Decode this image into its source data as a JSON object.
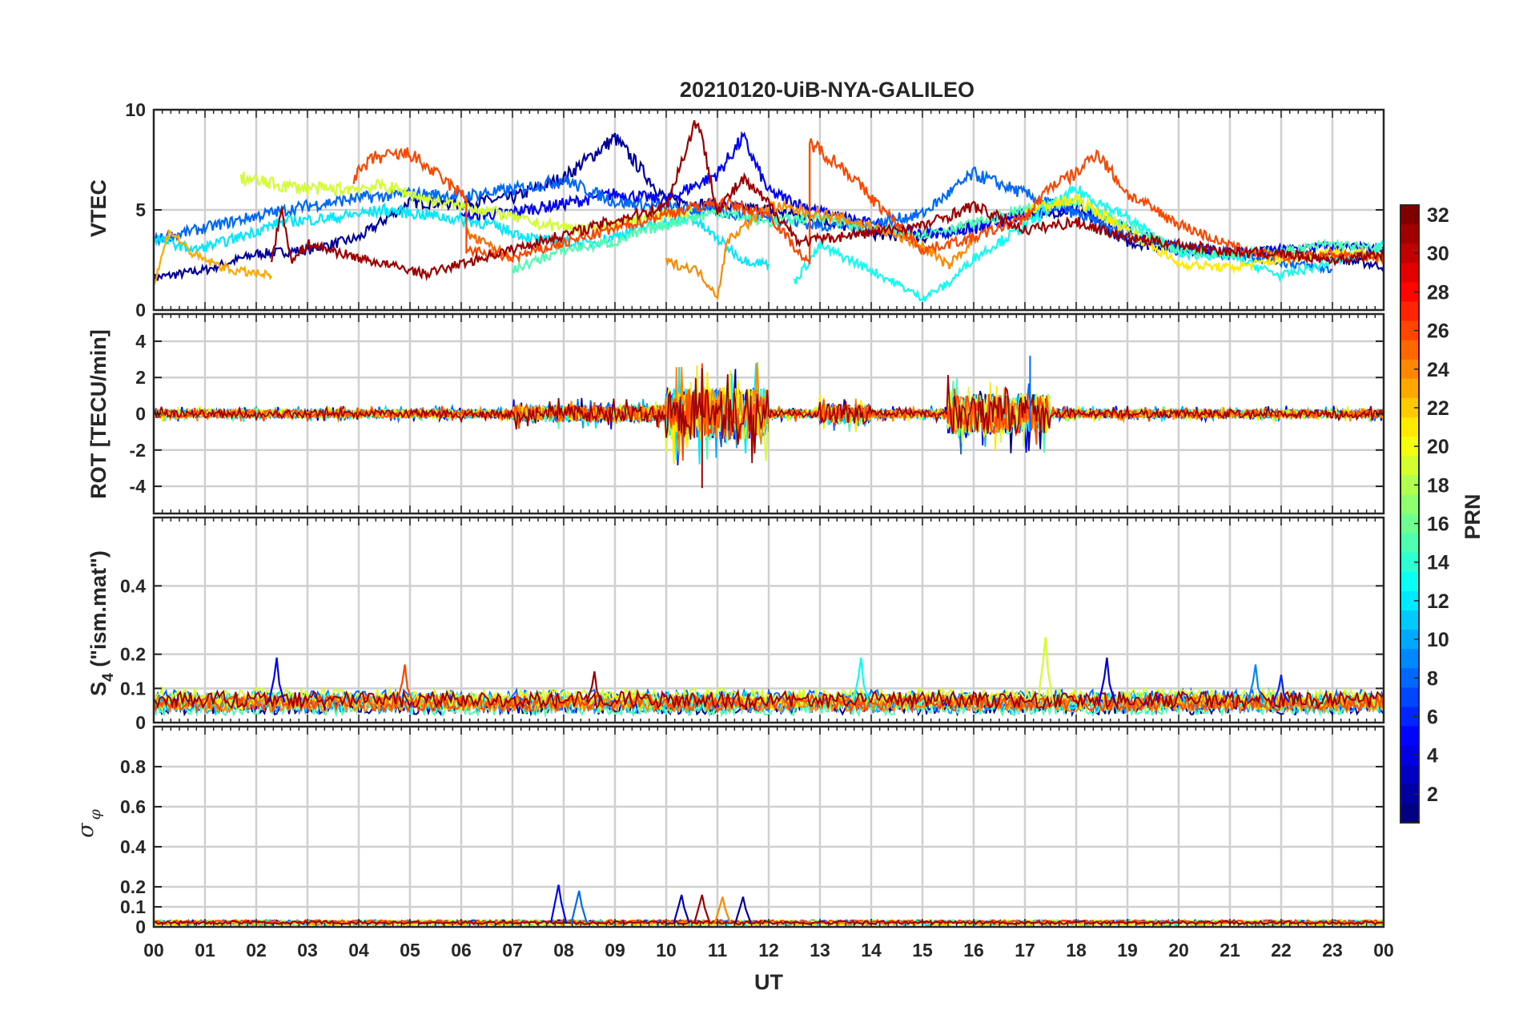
{
  "chart_data": [
    {
      "type": "line",
      "title": "20210120-UiB-NYA-GALILEO",
      "ylabel": "VTEC",
      "ylim": [
        0,
        10
      ],
      "yticks": [
        0,
        5,
        10
      ],
      "xlim": [
        0,
        24
      ],
      "x_unit": "hours UT",
      "grid": true,
      "series": [
        {
          "prn": 2,
          "points": [
            [
              0,
              1.6
            ],
            [
              1,
              2.0
            ],
            [
              2,
              2.8
            ],
            [
              3,
              3.0
            ],
            [
              4,
              3.6
            ],
            [
              5,
              5.4
            ],
            [
              6,
              5.3
            ],
            [
              7,
              5.6
            ],
            [
              8,
              6.6
            ],
            [
              9,
              8.6
            ],
            [
              10,
              5.5
            ],
            [
              11,
              5.2
            ],
            [
              12,
              5.0
            ],
            [
              13,
              4.5
            ],
            [
              14,
              3.8
            ],
            [
              15,
              3.6
            ],
            [
              16,
              4.2
            ],
            [
              17,
              4.8
            ],
            [
              18,
              5.0
            ],
            [
              19,
              3.4
            ],
            [
              20,
              3.0
            ],
            [
              21,
              2.9
            ],
            [
              22,
              3.0
            ],
            [
              23,
              2.6
            ],
            [
              24,
              2.2
            ]
          ]
        },
        {
          "prn": 5,
          "points": [
            [
              6,
              4.6
            ],
            [
              7,
              4.9
            ],
            [
              8,
              5.3
            ],
            [
              9,
              5.8
            ],
            [
              10,
              5.5
            ],
            [
              11,
              6.8
            ],
            [
              11.5,
              8.6
            ],
            [
              12,
              5.9
            ],
            [
              13,
              4.9
            ],
            [
              14,
              4.3
            ],
            [
              15,
              3.8
            ],
            [
              16,
              4.0
            ],
            [
              17,
              4.8
            ],
            [
              18,
              5.2
            ],
            [
              19,
              4.0
            ],
            [
              20,
              3.1
            ],
            [
              21,
              2.8
            ],
            [
              22,
              3.0
            ],
            [
              23,
              3.2
            ],
            [
              24,
              3.0
            ]
          ]
        },
        {
          "prn": 8,
          "points": [
            [
              0,
              3.5
            ],
            [
              1,
              4.1
            ],
            [
              2,
              4.7
            ],
            [
              3,
              5.2
            ],
            [
              4,
              5.6
            ],
            [
              5,
              5.8
            ],
            [
              6,
              5.7
            ],
            [
              7,
              6.0
            ],
            [
              8,
              6.5
            ],
            [
              9,
              5.4
            ],
            [
              10,
              5.1
            ],
            [
              11,
              4.9
            ],
            [
              12,
              4.6
            ],
            [
              13,
              4.2
            ],
            [
              14,
              4.3
            ],
            [
              15,
              4.8
            ],
            [
              16,
              6.8
            ],
            [
              17,
              5.8
            ],
            [
              18,
              4.8
            ],
            [
              19,
              3.7
            ],
            [
              20,
              3.2
            ],
            [
              21,
              2.9
            ],
            [
              22,
              2.4
            ],
            [
              23,
              2.0
            ]
          ]
        },
        {
          "prn": 12,
          "points": [
            [
              0,
              3.6
            ],
            [
              0.8,
              3.0
            ],
            [
              1.5,
              3.5
            ],
            [
              2.5,
              4.4
            ],
            [
              3.5,
              4.6
            ],
            [
              4.5,
              5.0
            ],
            [
              5.5,
              4.7
            ],
            [
              6.5,
              4.3
            ],
            [
              7.5,
              3.5
            ],
            [
              8.5,
              3.3
            ],
            [
              9.5,
              4.1
            ],
            [
              10.5,
              4.6
            ],
            [
              11.5,
              2.5
            ],
            [
              12,
              2.3
            ]
          ]
        },
        {
          "prn": 13,
          "points": [
            [
              12.5,
              1.4
            ],
            [
              13,
              3.2
            ],
            [
              14,
              2.0
            ],
            [
              15,
              0.6
            ],
            [
              15.5,
              1.3
            ],
            [
              16,
              2.6
            ],
            [
              17,
              4.2
            ],
            [
              18,
              6.0
            ],
            [
              19,
              4.6
            ],
            [
              20,
              2.8
            ],
            [
              21,
              2.7
            ],
            [
              22,
              1.7
            ],
            [
              23,
              2.4
            ],
            [
              24,
              3.2
            ]
          ]
        },
        {
          "prn": 15,
          "points": [
            [
              7,
              2.0
            ],
            [
              8,
              3.0
            ],
            [
              9,
              3.4
            ],
            [
              10,
              4.3
            ],
            [
              11,
              4.9
            ],
            [
              12,
              4.4
            ],
            [
              13,
              4.7
            ],
            [
              14,
              4.0
            ],
            [
              15,
              3.8
            ],
            [
              16,
              4.3
            ],
            [
              17,
              5.0
            ],
            [
              18,
              5.4
            ],
            [
              19,
              4.2
            ],
            [
              20,
              3.0
            ],
            [
              21,
              2.8
            ],
            [
              22,
              2.9
            ],
            [
              23,
              3.3
            ],
            [
              24,
              3.0
            ]
          ]
        },
        {
          "prn": 19,
          "points": [
            [
              1.7,
              6.6
            ],
            [
              2.5,
              6.2
            ],
            [
              3.5,
              6.0
            ],
            [
              4.5,
              6.2
            ],
            [
              5.5,
              5.4
            ],
            [
              6.5,
              5.0
            ],
            [
              7.5,
              4.3
            ],
            [
              8.5,
              4.0
            ],
            [
              9.5,
              4.6
            ],
            [
              10.5,
              4.9
            ]
          ]
        },
        {
          "prn": 21,
          "points": [
            [
              17,
              5.0
            ],
            [
              18,
              5.5
            ],
            [
              19,
              4.0
            ],
            [
              20,
              2.3
            ],
            [
              21,
              2.1
            ],
            [
              22,
              2.5
            ],
            [
              23,
              2.9
            ],
            [
              24,
              2.7
            ]
          ]
        },
        {
          "prn": 23,
          "points": [
            [
              0,
              1.2
            ],
            [
              0.3,
              4.0
            ],
            [
              0.8,
              2.7
            ],
            [
              1.5,
              2.0
            ],
            [
              2.3,
              1.7
            ]
          ]
        },
        {
          "prn": 24,
          "points": [
            [
              10,
              2.4
            ],
            [
              10.6,
              2.0
            ],
            [
              11,
              0.7
            ],
            [
              11.2,
              3.5
            ],
            [
              12,
              5.2
            ],
            [
              13,
              4.8
            ],
            [
              14,
              4.2
            ],
            [
              15,
              3.2
            ],
            [
              15.5,
              2.2
            ],
            [
              16,
              3.5
            ]
          ]
        },
        {
          "prn": 25,
          "points": [
            [
              6.1,
              3.8
            ],
            [
              7,
              2.6
            ]
          ]
        },
        {
          "prn": 26,
          "points": [
            [
              3.9,
              6.6
            ],
            [
              4.3,
              7.6
            ],
            [
              5,
              7.8
            ],
            [
              5.8,
              6.2
            ],
            [
              6.1,
              5.6
            ],
            [
              6.1,
              3.0
            ],
            [
              7,
              2.6
            ],
            [
              10,
              4.8
            ],
            [
              11,
              5.4
            ],
            [
              12,
              4.8
            ],
            [
              12.8,
              2.2
            ],
            [
              12.8,
              8.4
            ],
            [
              13.5,
              7.0
            ],
            [
              14,
              5.6
            ],
            [
              15,
              3.0
            ],
            [
              16,
              3.6
            ],
            [
              17,
              4.6
            ],
            [
              17.5,
              6.2
            ],
            [
              18,
              6.8
            ],
            [
              18.4,
              7.9
            ],
            [
              19,
              5.8
            ],
            [
              20,
              4.3
            ],
            [
              21,
              3.2
            ],
            [
              22,
              2.6
            ],
            [
              23,
              2.8
            ],
            [
              24,
              2.6
            ]
          ]
        },
        {
          "prn": 31,
          "points": [
            [
              2.3,
              2.6
            ],
            [
              2.5,
              5.0
            ],
            [
              2.7,
              2.4
            ],
            [
              3,
              3.3
            ],
            [
              4,
              2.6
            ],
            [
              5,
              2.0
            ],
            [
              5.3,
              1.8
            ],
            [
              10,
              5.2
            ],
            [
              10.6,
              9.6
            ],
            [
              11,
              5.0
            ],
            [
              11.5,
              6.5
            ],
            [
              12,
              5.3
            ],
            [
              12.6,
              3.4
            ],
            [
              15,
              4.2
            ],
            [
              16,
              5.2
            ],
            [
              17,
              4.0
            ],
            [
              18,
              4.4
            ],
            [
              19,
              3.6
            ],
            [
              20,
              3.3
            ],
            [
              21,
              2.9
            ],
            [
              22,
              2.8
            ],
            [
              23,
              2.5
            ],
            [
              24,
              2.8
            ]
          ]
        }
      ]
    },
    {
      "type": "line",
      "title": "",
      "ylabel": "ROT [TECU/min]",
      "ylim": [
        -5.5,
        5.5
      ],
      "yticks": [
        -4,
        -2,
        0,
        2,
        4
      ],
      "xlim": [
        0,
        24
      ],
      "grid": true,
      "activity_windows_UT": [
        [
          10,
          12,
          3.2
        ],
        [
          15.5,
          17.5,
          2.5
        ],
        [
          13,
          14,
          1.2
        ],
        [
          7,
          10,
          1.0
        ]
      ],
      "series_extremes": {
        "max": 3.2,
        "min": -4.1
      }
    },
    {
      "type": "line",
      "title": "",
      "ylabel": "S4 (\"ism.mat\")",
      "ylabel_main": "S",
      "ylabel_sub": "4",
      "ylabel_rest": " (\"ism.mat\")",
      "ylim": [
        0,
        0.6
      ],
      "yticks": [
        0,
        0.1,
        0.2,
        0.4
      ],
      "xlim": [
        0,
        24
      ],
      "grid": true,
      "baseline": 0.06,
      "peaks": [
        [
          2.4,
          0.19,
          5
        ],
        [
          4.9,
          0.17,
          26
        ],
        [
          8.6,
          0.15,
          31
        ],
        [
          13.8,
          0.19,
          13
        ],
        [
          17.4,
          0.25,
          19
        ],
        [
          18.6,
          0.19,
          4
        ],
        [
          21.5,
          0.17,
          9
        ],
        [
          22.0,
          0.14,
          6
        ]
      ]
    },
    {
      "type": "line",
      "title": "",
      "ylabel": "σ φ",
      "ylabel_main": "σ",
      "ylabel_sub": "φ",
      "ylim": [
        0,
        1
      ],
      "yticks": [
        0,
        0.1,
        0.2,
        0.4,
        0.6,
        0.8
      ],
      "xlim": [
        0,
        24
      ],
      "grid": true,
      "baseline": 0.02,
      "peaks": [
        [
          7.9,
          0.21,
          5
        ],
        [
          8.3,
          0.18,
          8
        ],
        [
          10.3,
          0.16,
          3
        ],
        [
          10.7,
          0.16,
          31
        ],
        [
          11.1,
          0.15,
          24
        ],
        [
          11.5,
          0.15,
          2
        ]
      ]
    }
  ],
  "xaxis": {
    "label": "UT",
    "ticks": [
      "00",
      "01",
      "02",
      "03",
      "04",
      "05",
      "06",
      "07",
      "08",
      "09",
      "10",
      "11",
      "12",
      "13",
      "14",
      "15",
      "16",
      "17",
      "18",
      "19",
      "20",
      "21",
      "22",
      "23",
      "00"
    ]
  },
  "colorbar": {
    "label": "PRN",
    "range": [
      1,
      32
    ],
    "ticks": [
      "2",
      "4",
      "6",
      "8",
      "10",
      "12",
      "14",
      "16",
      "18",
      "20",
      "22",
      "24",
      "26",
      "28",
      "30",
      "32"
    ],
    "colormap": "jet"
  }
}
